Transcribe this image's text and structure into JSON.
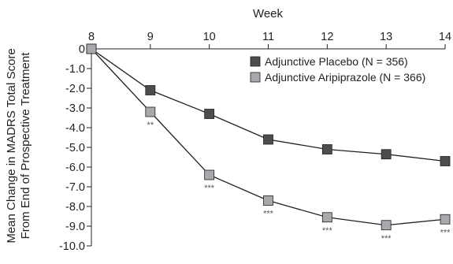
{
  "chart_data": {
    "type": "line",
    "xlabel": "Week",
    "ylabel_lines": [
      "Mean Change in MADRS Total Score",
      "From End of Prospective Treatment"
    ],
    "x": [
      8,
      9,
      10,
      11,
      12,
      13,
      14
    ],
    "x_ticks": [
      "8",
      "9",
      "10",
      "11",
      "12",
      "13",
      "14"
    ],
    "xlim": [
      8,
      14
    ],
    "ylim": [
      -10,
      0
    ],
    "y_ticks": [
      0,
      -1,
      -2,
      -3,
      -4,
      -5,
      -6,
      -7,
      -8,
      -9,
      -10
    ],
    "y_tick_labels": [
      "0",
      "-1.0",
      "-2.0",
      "-3.0",
      "-4.0",
      "-5.0",
      "-6.0",
      "-7.0",
      "-8.0",
      "-9.0",
      "-10.0"
    ],
    "x_axis_position": "top",
    "grid": false,
    "legend_position": "top-right",
    "series": [
      {
        "name": "Adjunctive Placebo (N = 356)",
        "color": "#4d4d4f",
        "values": [
          0,
          -2.1,
          -3.3,
          -4.6,
          -5.1,
          -5.35,
          -5.7
        ],
        "annotations": [
          "",
          "",
          "",
          "",
          "",
          "",
          ""
        ]
      },
      {
        "name": "Adjunctive Aripiprazole (N = 366)",
        "color": "#a7a9ac",
        "values": [
          0,
          -3.2,
          -6.4,
          -7.7,
          -8.55,
          -8.95,
          -8.65
        ],
        "annotations": [
          "",
          "**",
          "***",
          "***",
          "***",
          "***",
          "***"
        ]
      }
    ]
  }
}
